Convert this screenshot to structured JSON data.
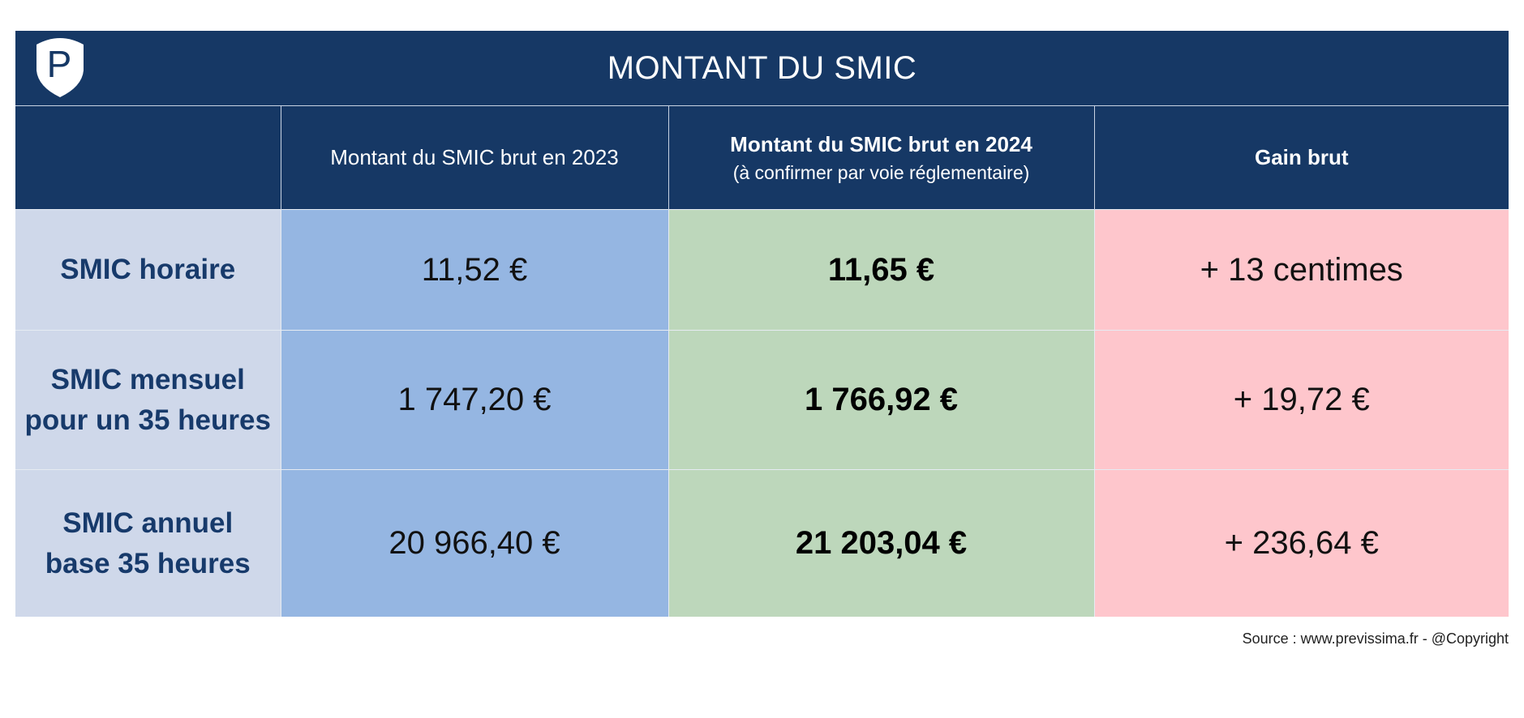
{
  "title": "MONTANT DU SMIC",
  "logo": {
    "icon": "shield-p-logo",
    "letter": "P"
  },
  "columns": [
    {
      "label": "",
      "sublabel": ""
    },
    {
      "label": "Montant du SMIC brut en 2023",
      "sublabel": ""
    },
    {
      "label": "Montant du SMIC brut en 2024",
      "sublabel": "(à confirmer par voie réglementaire)"
    },
    {
      "label": "Gain brut",
      "sublabel": ""
    }
  ],
  "rows": [
    {
      "label_line1": "SMIC horaire",
      "label_line2": "",
      "v2023": "11,52 €",
      "v2024": "11,65 €",
      "gain": "+ 13 centimes"
    },
    {
      "label_line1": "SMIC mensuel",
      "label_line2": "pour un 35 heures",
      "v2023": "1 747,20 €",
      "v2024": "1 766,92 €",
      "gain": "+ 19,72 €"
    },
    {
      "label_line1": "SMIC annuel",
      "label_line2": "base 35 heures",
      "v2023": "20 966,40 €",
      "v2024": "21 203,04 €",
      "gain": "+ 236,64 €"
    }
  ],
  "source": "Source : www.previssima.fr - @Copyright",
  "colors": {
    "header_navy": "#163865",
    "label_cell": "#cfd8ea",
    "col_2023": "#95b6e2",
    "col_2024": "#bdd7bb",
    "col_gain": "#fec6cc"
  }
}
